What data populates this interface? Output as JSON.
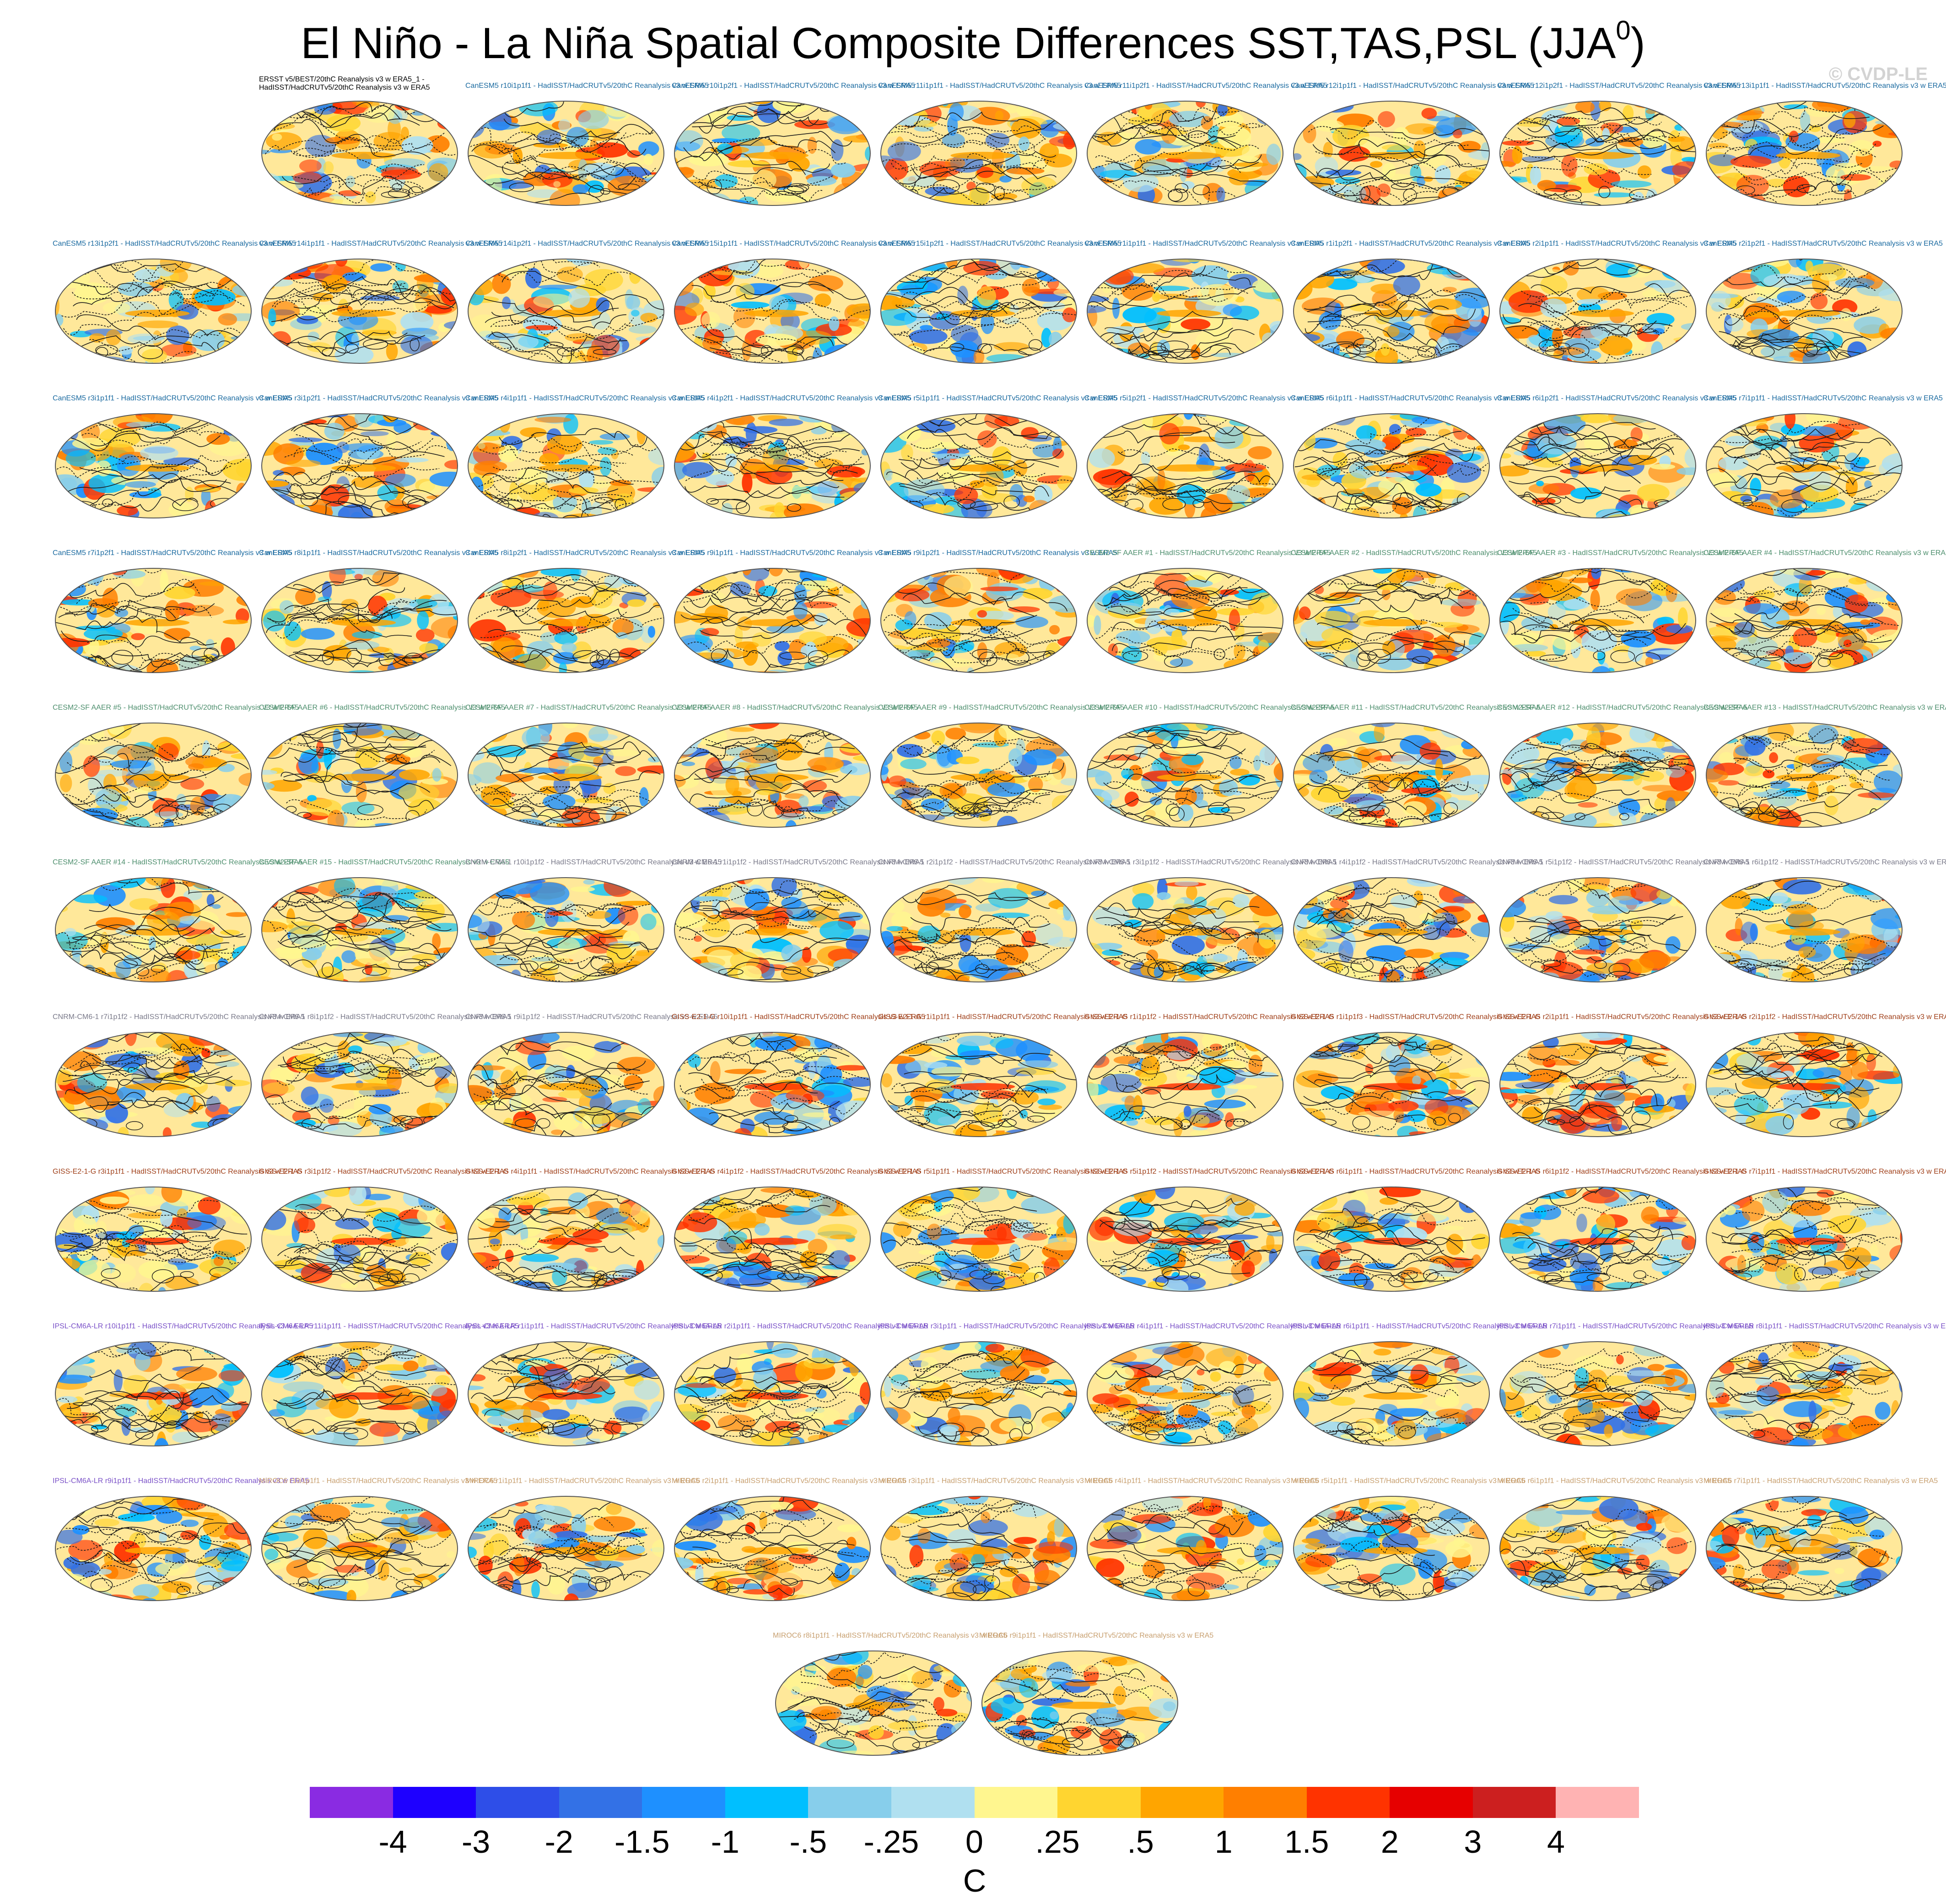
{
  "title": "El Niño - La Niña Spatial Composite Differences SST,TAS,PSL (JJA",
  "title_superscript": "0",
  "title_close": ")",
  "copyright": "© CVDP-LE",
  "units": "C",
  "colorbar": {
    "colors": [
      "#8a2be2",
      "#1e00ff",
      "#2e4ee8",
      "#3371e6",
      "#1e90ff",
      "#00bfff",
      "#87ceeb",
      "#b0e0f0",
      "#fff68f",
      "#ffd530",
      "#ffa500",
      "#ff7f00",
      "#ff3300",
      "#e60000",
      "#cc1f1f",
      "#ffb3b3"
    ],
    "ticks": [
      "-4",
      "-3",
      "-2",
      "-1.5",
      "-1",
      "-.5",
      "-.25",
      "0",
      ".25",
      ".5",
      "1",
      "1.5",
      "2",
      "3",
      "4"
    ]
  },
  "panels": [
    {
      "row": 0,
      "col": 1,
      "color": "#000000",
      "label": "ERSST v5/BEST/20thC Reanalysis v3 w ERA5_1 - HadISST/HadCRUTv5/20thC Reanalysis v3 w ERA5"
    },
    {
      "row": 0,
      "col": 2,
      "color": "#1a6aa0",
      "label": "CanESM5 r10i1p1f1 - HadISST/HadCRUTv5/20thC Reanalysis v3 w ERA5"
    },
    {
      "row": 0,
      "col": 3,
      "color": "#1a6aa0",
      "label": "CanESM5 r10i1p2f1 - HadISST/HadCRUTv5/20thC Reanalysis v3 w ERA5"
    },
    {
      "row": 0,
      "col": 4,
      "color": "#1a6aa0",
      "label": "CanESM5 r11i1p1f1 - HadISST/HadCRUTv5/20thC Reanalysis v3 w ERA5"
    },
    {
      "row": 0,
      "col": 5,
      "color": "#1a6aa0",
      "label": "CanESM5 r11i1p2f1 - HadISST/HadCRUTv5/20thC Reanalysis v3 w ERA5"
    },
    {
      "row": 0,
      "col": 6,
      "color": "#1a6aa0",
      "label": "CanESM5 r12i1p1f1 - HadISST/HadCRUTv5/20thC Reanalysis v3 w ERA5"
    },
    {
      "row": 0,
      "col": 7,
      "color": "#1a6aa0",
      "label": "CanESM5 r12i1p2f1 - HadISST/HadCRUTv5/20thC Reanalysis v3 w ERA5"
    },
    {
      "row": 0,
      "col": 8,
      "color": "#1a6aa0",
      "label": "CanESM5 r13i1p1f1 - HadISST/HadCRUTv5/20thC Reanalysis v3 w ERA5"
    },
    {
      "row": 1,
      "col": 0,
      "color": "#1a6aa0",
      "label": "CanESM5 r13i1p2f1 - HadISST/HadCRUTv5/20thC Reanalysis v3 w ERA5"
    },
    {
      "row": 1,
      "col": 1,
      "color": "#1a6aa0",
      "label": "CanESM5 r14i1p1f1 - HadISST/HadCRUTv5/20thC Reanalysis v3 w ERA5"
    },
    {
      "row": 1,
      "col": 2,
      "color": "#1a6aa0",
      "label": "CanESM5 r14i1p2f1 - HadISST/HadCRUTv5/20thC Reanalysis v3 w ERA5"
    },
    {
      "row": 1,
      "col": 3,
      "color": "#1a6aa0",
      "label": "CanESM5 r15i1p1f1 - HadISST/HadCRUTv5/20thC Reanalysis v3 w ERA5"
    },
    {
      "row": 1,
      "col": 4,
      "color": "#1a6aa0",
      "label": "CanESM5 r15i1p2f1 - HadISST/HadCRUTv5/20thC Reanalysis v3 w ERA5"
    },
    {
      "row": 1,
      "col": 5,
      "color": "#1a6aa0",
      "label": "CanESM5 r1i1p1f1 - HadISST/HadCRUTv5/20thC Reanalysis v3 w ERA5"
    },
    {
      "row": 1,
      "col": 6,
      "color": "#1a6aa0",
      "label": "CanESM5 r1i1p2f1 - HadISST/HadCRUTv5/20thC Reanalysis v3 w ERA5"
    },
    {
      "row": 1,
      "col": 7,
      "color": "#1a6aa0",
      "label": "CanESM5 r2i1p1f1 - HadISST/HadCRUTv5/20thC Reanalysis v3 w ERA5"
    },
    {
      "row": 1,
      "col": 8,
      "color": "#1a6aa0",
      "label": "CanESM5 r2i1p2f1 - HadISST/HadCRUTv5/20thC Reanalysis v3 w ERA5"
    },
    {
      "row": 2,
      "col": 0,
      "color": "#1a6aa0",
      "label": "CanESM5 r3i1p1f1 - HadISST/HadCRUTv5/20thC Reanalysis v3 w ERA5"
    },
    {
      "row": 2,
      "col": 1,
      "color": "#1a6aa0",
      "label": "CanESM5 r3i1p2f1 - HadISST/HadCRUTv5/20thC Reanalysis v3 w ERA5"
    },
    {
      "row": 2,
      "col": 2,
      "color": "#1a6aa0",
      "label": "CanESM5 r4i1p1f1 - HadISST/HadCRUTv5/20thC Reanalysis v3 w ERA5"
    },
    {
      "row": 2,
      "col": 3,
      "color": "#1a6aa0",
      "label": "CanESM5 r4i1p2f1 - HadISST/HadCRUTv5/20thC Reanalysis v3 w ERA5"
    },
    {
      "row": 2,
      "col": 4,
      "color": "#1a6aa0",
      "label": "CanESM5 r5i1p1f1 - HadISST/HadCRUTv5/20thC Reanalysis v3 w ERA5"
    },
    {
      "row": 2,
      "col": 5,
      "color": "#1a6aa0",
      "label": "CanESM5 r5i1p2f1 - HadISST/HadCRUTv5/20thC Reanalysis v3 w ERA5"
    },
    {
      "row": 2,
      "col": 6,
      "color": "#1a6aa0",
      "label": "CanESM5 r6i1p1f1 - HadISST/HadCRUTv5/20thC Reanalysis v3 w ERA5"
    },
    {
      "row": 2,
      "col": 7,
      "color": "#1a6aa0",
      "label": "CanESM5 r6i1p2f1 - HadISST/HadCRUTv5/20thC Reanalysis v3 w ERA5"
    },
    {
      "row": 2,
      "col": 8,
      "color": "#1a6aa0",
      "label": "CanESM5 r7i1p1f1 - HadISST/HadCRUTv5/20thC Reanalysis v3 w ERA5"
    },
    {
      "row": 3,
      "col": 0,
      "color": "#1a6aa0",
      "label": "CanESM5 r7i1p2f1 - HadISST/HadCRUTv5/20thC Reanalysis v3 w ERA5"
    },
    {
      "row": 3,
      "col": 1,
      "color": "#1a6aa0",
      "label": "CanESM5 r8i1p1f1 - HadISST/HadCRUTv5/20thC Reanalysis v3 w ERA5"
    },
    {
      "row": 3,
      "col": 2,
      "color": "#1a6aa0",
      "label": "CanESM5 r8i1p2f1 - HadISST/HadCRUTv5/20thC Reanalysis v3 w ERA5"
    },
    {
      "row": 3,
      "col": 3,
      "color": "#1a6aa0",
      "label": "CanESM5 r9i1p1f1 - HadISST/HadCRUTv5/20thC Reanalysis v3 w ERA5"
    },
    {
      "row": 3,
      "col": 4,
      "color": "#1a6aa0",
      "label": "CanESM5 r9i1p2f1 - HadISST/HadCRUTv5/20thC Reanalysis v3 w ERA5"
    },
    {
      "row": 3,
      "col": 5,
      "color": "#4e8f6e",
      "label": "CESM2-SF AAER #1 - HadISST/HadCRUTv5/20thC Reanalysis v3 w ERA5"
    },
    {
      "row": 3,
      "col": 6,
      "color": "#4e8f6e",
      "label": "CESM2-SF AAER #2 - HadISST/HadCRUTv5/20thC Reanalysis v3 w ERA5"
    },
    {
      "row": 3,
      "col": 7,
      "color": "#4e8f6e",
      "label": "CESM2-SF AAER #3 - HadISST/HadCRUTv5/20thC Reanalysis v3 w ERA5"
    },
    {
      "row": 3,
      "col": 8,
      "color": "#4e8f6e",
      "label": "CESM2-SF AAER #4 - HadISST/HadCRUTv5/20thC Reanalysis v3 w ERA5"
    },
    {
      "row": 4,
      "col": 0,
      "color": "#4e8f6e",
      "label": "CESM2-SF AAER #5 - HadISST/HadCRUTv5/20thC Reanalysis v3 w ERA5"
    },
    {
      "row": 4,
      "col": 1,
      "color": "#4e8f6e",
      "label": "CESM2-SF AAER #6 - HadISST/HadCRUTv5/20thC Reanalysis v3 w ERA5"
    },
    {
      "row": 4,
      "col": 2,
      "color": "#4e8f6e",
      "label": "CESM2-SF AAER #7 - HadISST/HadCRUTv5/20thC Reanalysis v3 w ERA5"
    },
    {
      "row": 4,
      "col": 3,
      "color": "#4e8f6e",
      "label": "CESM2-SF AAER #8 - HadISST/HadCRUTv5/20thC Reanalysis v3 w ERA5"
    },
    {
      "row": 4,
      "col": 4,
      "color": "#4e8f6e",
      "label": "CESM2-SF AAER #9 - HadISST/HadCRUTv5/20thC Reanalysis v3 w ERA5"
    },
    {
      "row": 4,
      "col": 5,
      "color": "#4e8f6e",
      "label": "CESM2-SF AAER #10 - HadISST/HadCRUTv5/20thC Reanalysis v3 w ERA5"
    },
    {
      "row": 4,
      "col": 6,
      "color": "#4e8f6e",
      "label": "CESM2-SF AAER #11 - HadISST/HadCRUTv5/20thC Reanalysis v3 w ERA5"
    },
    {
      "row": 4,
      "col": 7,
      "color": "#4e8f6e",
      "label": "CESM2-SF AAER #12 - HadISST/HadCRUTv5/20thC Reanalysis v3 w ERA5"
    },
    {
      "row": 4,
      "col": 8,
      "color": "#4e8f6e",
      "label": "CESM2-SF AAER #13 - HadISST/HadCRUTv5/20thC Reanalysis v3 w ERA5"
    },
    {
      "row": 5,
      "col": 0,
      "color": "#4e8f6e",
      "label": "CESM2-SF AAER #14 - HadISST/HadCRUTv5/20thC Reanalysis v3 w ERA5"
    },
    {
      "row": 5,
      "col": 1,
      "color": "#4e8f6e",
      "label": "CESM2-SF AAER #15 - HadISST/HadCRUTv5/20thC Reanalysis v3 w ERA5"
    },
    {
      "row": 5,
      "col": 2,
      "color": "#7a7a8a",
      "label": "CNRM-CM6-1 r10i1p1f2 - HadISST/HadCRUTv5/20thC Reanalysis v3 w ERA5"
    },
    {
      "row": 5,
      "col": 3,
      "color": "#7a7a8a",
      "label": "CNRM-CM6-1 r1i1p1f2 - HadISST/HadCRUTv5/20thC Reanalysis v3 w ERA5"
    },
    {
      "row": 5,
      "col": 4,
      "color": "#7a7a8a",
      "label": "CNRM-CM6-1 r2i1p1f2 - HadISST/HadCRUTv5/20thC Reanalysis v3 w ERA5"
    },
    {
      "row": 5,
      "col": 5,
      "color": "#7a7a8a",
      "label": "CNRM-CM6-1 r3i1p1f2 - HadISST/HadCRUTv5/20thC Reanalysis v3 w ERA5"
    },
    {
      "row": 5,
      "col": 6,
      "color": "#7a7a8a",
      "label": "CNRM-CM6-1 r4i1p1f2 - HadISST/HadCRUTv5/20thC Reanalysis v3 w ERA5"
    },
    {
      "row": 5,
      "col": 7,
      "color": "#7a7a8a",
      "label": "CNRM-CM6-1 r5i1p1f2 - HadISST/HadCRUTv5/20thC Reanalysis v3 w ERA5"
    },
    {
      "row": 5,
      "col": 8,
      "color": "#7a7a8a",
      "label": "CNRM-CM6-1 r6i1p1f2 - HadISST/HadCRUTv5/20thC Reanalysis v3 w ERA5"
    },
    {
      "row": 6,
      "col": 0,
      "color": "#7a7a8a",
      "label": "CNRM-CM6-1 r7i1p1f2 - HadISST/HadCRUTv5/20thC Reanalysis v3 w ERA5"
    },
    {
      "row": 6,
      "col": 1,
      "color": "#7a7a8a",
      "label": "CNRM-CM6-1 r8i1p1f2 - HadISST/HadCRUTv5/20thC Reanalysis v3 w ERA5"
    },
    {
      "row": 6,
      "col": 2,
      "color": "#7a7a8a",
      "label": "CNRM-CM6-1 r9i1p1f2 - HadISST/HadCRUTv5/20thC Reanalysis v3 w ERA5"
    },
    {
      "row": 6,
      "col": 3,
      "color": "#a0401a",
      "label": "GISS-E2-1-G r10i1p1f1 - HadISST/HadCRUTv5/20thC Reanalysis v3 w ERA5"
    },
    {
      "row": 6,
      "col": 4,
      "color": "#a0401a",
      "label": "GISS-E2-1-G r1i1p1f1 - HadISST/HadCRUTv5/20thC Reanalysis v3 w ERA5"
    },
    {
      "row": 6,
      "col": 5,
      "color": "#a0401a",
      "label": "GISS-E2-1-G r1i1p1f2 - HadISST/HadCRUTv5/20thC Reanalysis v3 w ERA5"
    },
    {
      "row": 6,
      "col": 6,
      "color": "#a0401a",
      "label": "GISS-E2-1-G r1i1p1f3 - HadISST/HadCRUTv5/20thC Reanalysis v3 w ERA5"
    },
    {
      "row": 6,
      "col": 7,
      "color": "#a0401a",
      "label": "GISS-E2-1-G r2i1p1f1 - HadISST/HadCRUTv5/20thC Reanalysis v3 w ERA5"
    },
    {
      "row": 6,
      "col": 8,
      "color": "#a0401a",
      "label": "GISS-E2-1-G r2i1p1f2 - HadISST/HadCRUTv5/20thC Reanalysis v3 w ERA5"
    },
    {
      "row": 7,
      "col": 0,
      "color": "#a0401a",
      "label": "GISS-E2-1-G r3i1p1f1 - HadISST/HadCRUTv5/20thC Reanalysis v3 w ERA5"
    },
    {
      "row": 7,
      "col": 1,
      "color": "#a0401a",
      "label": "GISS-E2-1-G r3i1p1f2 - HadISST/HadCRUTv5/20thC Reanalysis v3 w ERA5"
    },
    {
      "row": 7,
      "col": 2,
      "color": "#a0401a",
      "label": "GISS-E2-1-G r4i1p1f1 - HadISST/HadCRUTv5/20thC Reanalysis v3 w ERA5"
    },
    {
      "row": 7,
      "col": 3,
      "color": "#a0401a",
      "label": "GISS-E2-1-G r4i1p1f2 - HadISST/HadCRUTv5/20thC Reanalysis v3 w ERA5"
    },
    {
      "row": 7,
      "col": 4,
      "color": "#a0401a",
      "label": "GISS-E2-1-G r5i1p1f1 - HadISST/HadCRUTv5/20thC Reanalysis v3 w ERA5"
    },
    {
      "row": 7,
      "col": 5,
      "color": "#a0401a",
      "label": "GISS-E2-1-G r5i1p1f2 - HadISST/HadCRUTv5/20thC Reanalysis v3 w ERA5"
    },
    {
      "row": 7,
      "col": 6,
      "color": "#a0401a",
      "label": "GISS-E2-1-G r6i1p1f1 - HadISST/HadCRUTv5/20thC Reanalysis v3 w ERA5"
    },
    {
      "row": 7,
      "col": 7,
      "color": "#a0401a",
      "label": "GISS-E2-1-G r6i1p1f2 - HadISST/HadCRUTv5/20thC Reanalysis v3 w ERA5"
    },
    {
      "row": 7,
      "col": 8,
      "color": "#a0401a",
      "label": "GISS-E2-1-G r7i1p1f1 - HadISST/HadCRUTv5/20thC Reanalysis v3 w ERA5"
    },
    {
      "row": 8,
      "col": 0,
      "color": "#7b52c8",
      "label": "IPSL-CM6A-LR r10i1p1f1 - HadISST/HadCRUTv5/20thC Reanalysis v3 w ERA5"
    },
    {
      "row": 8,
      "col": 1,
      "color": "#7b52c8",
      "label": "IPSL-CM6A-LR r11i1p1f1 - HadISST/HadCRUTv5/20thC Reanalysis v3 w ERA5"
    },
    {
      "row": 8,
      "col": 2,
      "color": "#7b52c8",
      "label": "IPSL-CM6A-LR r1i1p1f1 - HadISST/HadCRUTv5/20thC Reanalysis v3 w ERA5"
    },
    {
      "row": 8,
      "col": 3,
      "color": "#7b52c8",
      "label": "IPSL-CM6A-LR r2i1p1f1 - HadISST/HadCRUTv5/20thC Reanalysis v3 w ERA5"
    },
    {
      "row": 8,
      "col": 4,
      "color": "#7b52c8",
      "label": "IPSL-CM6A-LR r3i1p1f1 - HadISST/HadCRUTv5/20thC Reanalysis v3 w ERA5"
    },
    {
      "row": 8,
      "col": 5,
      "color": "#7b52c8",
      "label": "IPSL-CM6A-LR r4i1p1f1 - HadISST/HadCRUTv5/20thC Reanalysis v3 w ERA5"
    },
    {
      "row": 8,
      "col": 6,
      "color": "#7b52c8",
      "label": "IPSL-CM6A-LR r6i1p1f1 - HadISST/HadCRUTv5/20thC Reanalysis v3 w ERA5"
    },
    {
      "row": 8,
      "col": 7,
      "color": "#7b52c8",
      "label": "IPSL-CM6A-LR r7i1p1f1 - HadISST/HadCRUTv5/20thC Reanalysis v3 w ERA5"
    },
    {
      "row": 8,
      "col": 8,
      "color": "#7b52c8",
      "label": "IPSL-CM6A-LR r8i1p1f1 - HadISST/HadCRUTv5/20thC Reanalysis v3 w ERA5"
    },
    {
      "row": 9,
      "col": 0,
      "color": "#7b52c8",
      "label": "IPSL-CM6A-LR r9i1p1f1 - HadISST/HadCRUTv5/20thC Reanalysis v3 w ERA5"
    },
    {
      "row": 9,
      "col": 1,
      "color": "#c8a070",
      "label": "MIROC6 r10i1p1f1 - HadISST/HadCRUTv5/20thC Reanalysis v3 w ERA5"
    },
    {
      "row": 9,
      "col": 2,
      "color": "#c8a070",
      "label": "MIROC6 r1i1p1f1 - HadISST/HadCRUTv5/20thC Reanalysis v3 w ERA5"
    },
    {
      "row": 9,
      "col": 3,
      "color": "#c8a070",
      "label": "MIROC6 r2i1p1f1 - HadISST/HadCRUTv5/20thC Reanalysis v3 w ERA5"
    },
    {
      "row": 9,
      "col": 4,
      "color": "#c8a070",
      "label": "MIROC6 r3i1p1f1 - HadISST/HadCRUTv5/20thC Reanalysis v3 w ERA5"
    },
    {
      "row": 9,
      "col": 5,
      "color": "#c8a070",
      "label": "MIROC6 r4i1p1f1 - HadISST/HadCRUTv5/20thC Reanalysis v3 w ERA5"
    },
    {
      "row": 9,
      "col": 6,
      "color": "#c8a070",
      "label": "MIROC6 r5i1p1f1 - HadISST/HadCRUTv5/20thC Reanalysis v3 w ERA5"
    },
    {
      "row": 9,
      "col": 7,
      "color": "#c8a070",
      "label": "MIROC6 r6i1p1f1 - HadISST/HadCRUTv5/20thC Reanalysis v3 w ERA5"
    },
    {
      "row": 9,
      "col": 8,
      "color": "#c8a070",
      "label": "MIROC6 r7i1p1f1 - HadISST/HadCRUTv5/20thC Reanalysis v3 w ERA5"
    },
    {
      "row": 10,
      "col": 0,
      "color": "#c8a070",
      "label": "MIROC6 r8i1p1f1 - HadISST/HadCRUTv5/20thC Reanalysis v3 w ERA5"
    },
    {
      "row": 10,
      "col": 1,
      "color": "#c8a070",
      "label": "MIROC6 r9i1p1f1 - HadISST/HadCRUTv5/20thC Reanalysis v3 w ERA5"
    }
  ]
}
